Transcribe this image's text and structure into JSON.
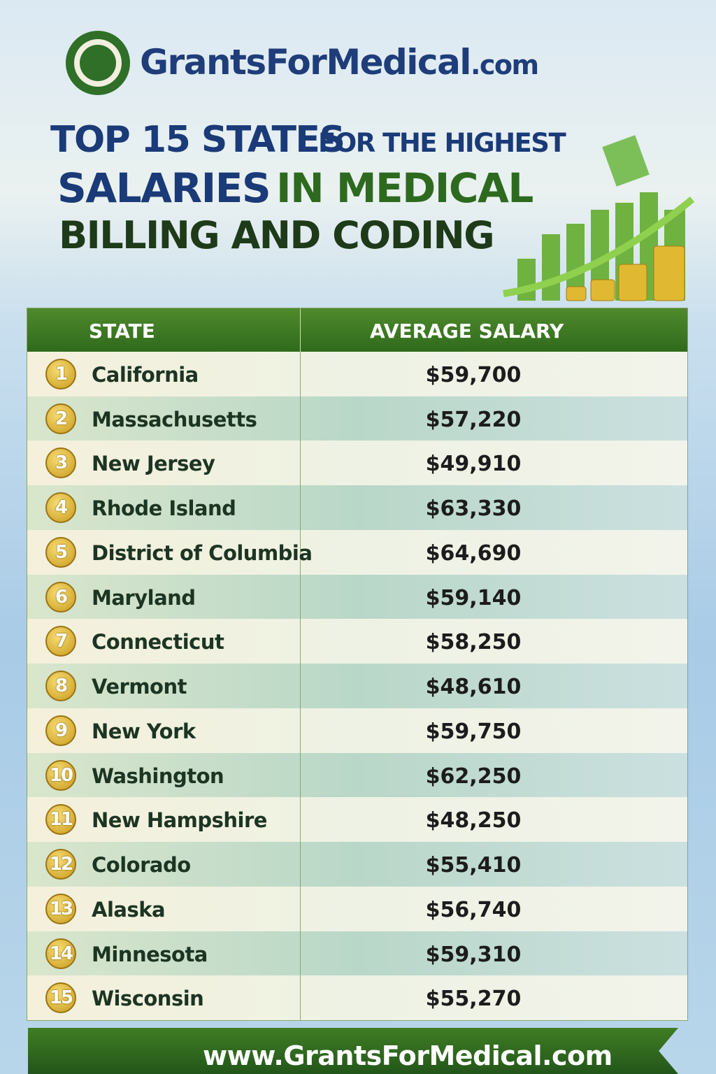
{
  "header": {
    "logo": {
      "brand": "GrantsForMedical",
      "suffix": ".com"
    },
    "title": {
      "line1_big": "TOP 15 STATES",
      "line1_small": "FOR THE HIGHEST",
      "line2_blue": "SALARIES",
      "line2_green": "IN MEDICAL",
      "line3": "BILLING AND CODING"
    }
  },
  "table": {
    "headers": [
      "STATE",
      "AVERAGE SALARY"
    ],
    "rows": [
      [
        "1",
        "California",
        "$59,700"
      ],
      [
        "2",
        "Massachusetts",
        "$57,220"
      ],
      [
        "3",
        "New Jersey",
        "$49,910"
      ],
      [
        "4",
        "Rhode Island",
        "$63,330"
      ],
      [
        "5",
        "District of Columbia",
        "$64,690"
      ],
      [
        "6",
        "Maryland",
        "$59,140"
      ],
      [
        "7",
        "Connecticut",
        "$58,250"
      ],
      [
        "8",
        "Vermont",
        "$48,610"
      ],
      [
        "9",
        "New York",
        "$59,750"
      ],
      [
        "10",
        "Washington",
        "$62,250"
      ],
      [
        "11",
        "New Hampshire",
        "$48,250"
      ],
      [
        "12",
        "Colorado",
        "$55,410"
      ],
      [
        "13",
        "Alaska",
        "$56,740"
      ],
      [
        "14",
        "Minnesota",
        "$59,310"
      ],
      [
        "15",
        "Wisconsin",
        "$55,270"
      ]
    ]
  },
  "footer": {
    "url": "www.GrantsForMedical.com"
  }
}
